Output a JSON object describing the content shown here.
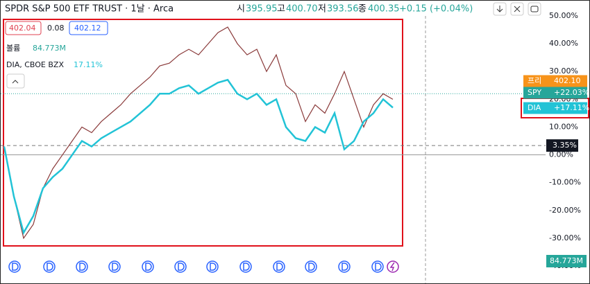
{
  "header": {
    "title": "SPDR S&P 500 ETF TRUST · 1날 · Arca",
    "open_label": "시",
    "open": "395.95",
    "high_label": "고",
    "high": "400.70",
    "low_label": "저",
    "low": "393.56",
    "close_label": "종",
    "close": "400.35",
    "change": "+0.15 (+0.04%)"
  },
  "legend": {
    "bid": "402.04",
    "spread": "0.08",
    "ask": "402.12",
    "volume_label": "볼륨",
    "volume": "84.773M",
    "compare": "DIA, CBOE BZX",
    "compare_value": "17.11%"
  },
  "chart_data": {
    "type": "line",
    "ylim": [
      -40,
      50
    ],
    "yticks": [
      {
        "value": 50,
        "label": "50.00%"
      },
      {
        "value": 40,
        "label": "40.00%"
      },
      {
        "value": 30,
        "label": "30.00%"
      },
      {
        "value": 20,
        "label": "20.00%"
      },
      {
        "value": 10,
        "label": "10.00%"
      },
      {
        "value": 0,
        "label": "0.00%"
      },
      {
        "value": -10,
        "label": "-10.00%"
      },
      {
        "value": -20,
        "label": "-20.00%"
      },
      {
        "value": -30,
        "label": "-30.00%"
      },
      {
        "value": -40,
        "label": "-40.00%"
      }
    ],
    "series": [
      {
        "name": "SPY",
        "color": "#8a3a3a",
        "values": [
          3,
          -15,
          -30,
          -25,
          -12,
          -5,
          0,
          5,
          10,
          8,
          12,
          15,
          18,
          22,
          25,
          28,
          32,
          33,
          36,
          38,
          36,
          40,
          44,
          46,
          40,
          36,
          38,
          30,
          36,
          25,
          22,
          12,
          18,
          15,
          22,
          30,
          20,
          10,
          18,
          22,
          20
        ]
      },
      {
        "name": "DIA",
        "color": "#22c3d6",
        "values": [
          3,
          -15,
          -28,
          -22,
          -12,
          -8,
          -5,
          0,
          5,
          3,
          6,
          8,
          10,
          12,
          15,
          18,
          22,
          22,
          24,
          25,
          22,
          24,
          26,
          27,
          22,
          20,
          22,
          18,
          20,
          10,
          6,
          5,
          10,
          8,
          15,
          2,
          5,
          12,
          15,
          20,
          17
        ]
      }
    ],
    "badges": [
      {
        "name": "프리",
        "value": 22.6,
        "label": "402.10",
        "color": "#f7931a"
      },
      {
        "name": "SPY",
        "value": 22.03,
        "label": "+22.03%",
        "color": "#26a69a"
      },
      {
        "name": "DIA",
        "value": 17.11,
        "label": "+17.11%",
        "color": "#22c3d6"
      }
    ],
    "marker": {
      "value": 3.35,
      "label": "3.35%"
    },
    "volume_badge": "84.773M"
  }
}
